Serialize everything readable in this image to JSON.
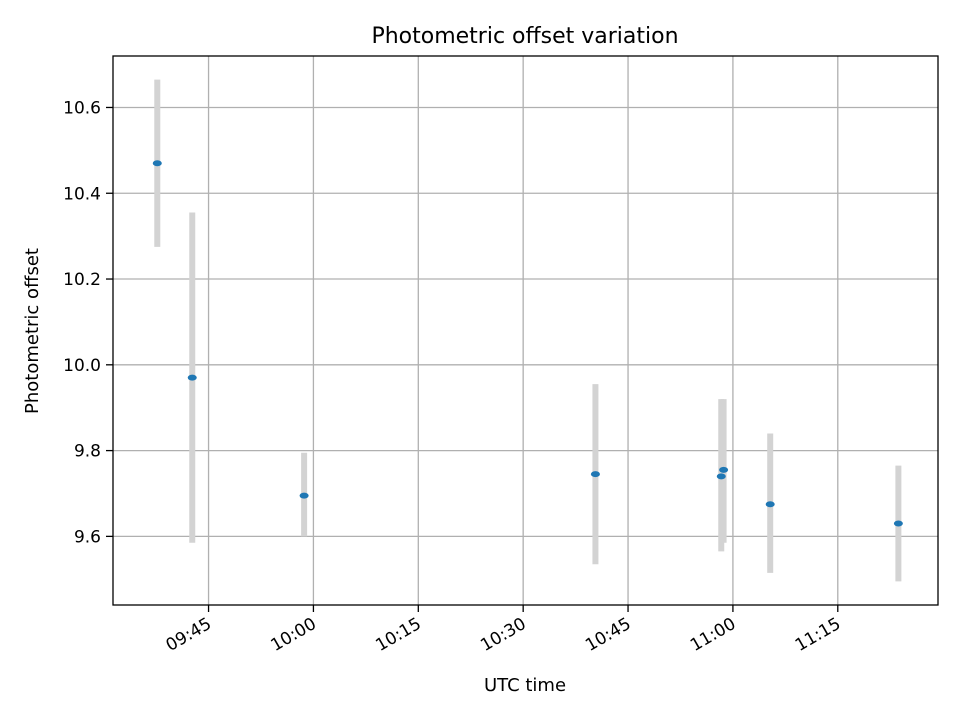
{
  "chart_data": {
    "type": "scatter",
    "title": "Photometric offset variation",
    "xlabel": "UTC time",
    "ylabel": "Photometric offset",
    "x_axis_type": "time",
    "x_ticks": [
      "09:45",
      "10:00",
      "10:15",
      "10:30",
      "10:45",
      "11:00",
      "11:15"
    ],
    "y_ticks": [
      "9.6",
      "9.8",
      "10.0",
      "10.2",
      "10.4",
      "10.6"
    ],
    "xlim": [
      "09:31:20",
      "11:29:20"
    ],
    "ylim": [
      9.44,
      10.72
    ],
    "grid": true,
    "error_bar_color": "#d3d3d3",
    "point_color": "#1f77b4",
    "points": [
      {
        "x": "09:37:40",
        "y": 10.47,
        "y_low": 10.275,
        "y_high": 10.665
      },
      {
        "x": "09:42:40",
        "y": 9.97,
        "y_low": 9.585,
        "y_high": 10.355
      },
      {
        "x": "09:58:40",
        "y": 9.695,
        "y_low": 9.6,
        "y_high": 9.795
      },
      {
        "x": "10:40:20",
        "y": 9.745,
        "y_low": 9.535,
        "y_high": 9.955
      },
      {
        "x": "10:58:20",
        "y": 9.74,
        "y_low": 9.565,
        "y_high": 9.92
      },
      {
        "x": "10:58:40",
        "y": 9.755,
        "y_low": 9.585,
        "y_high": 9.92
      },
      {
        "x": "11:05:20",
        "y": 9.675,
        "y_low": 9.515,
        "y_high": 9.84
      },
      {
        "x": "11:23:40",
        "y": 9.63,
        "y_low": 9.495,
        "y_high": 9.765
      }
    ]
  }
}
